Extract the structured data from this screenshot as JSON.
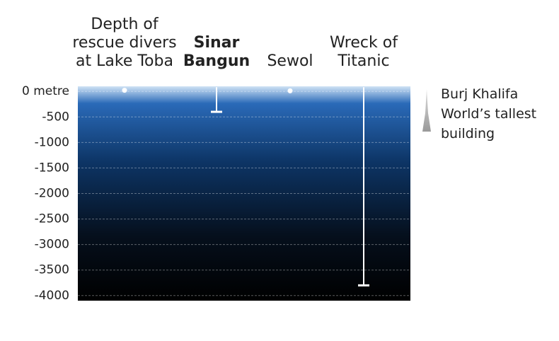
{
  "chart_data": {
    "type": "depth",
    "categories": [
      "Depth of rescue divers at Lake Toba",
      "Sinar Bangun",
      "Sewol",
      "Wreck of Titanic"
    ],
    "values": [
      -20,
      -400,
      -30,
      -3800
    ],
    "highlight_index": 1,
    "color": "#ffffff",
    "ylim": [
      -4100,
      100
    ],
    "yticks": [
      {
        "value": 0,
        "label": "0 metre"
      },
      -500,
      -1000,
      -1500,
      -2000,
      -2500,
      -3000,
      -3500,
      -4000
    ],
    "grid": true,
    "annotations": [
      "Burj Khalifa",
      "World’s tallest building"
    ]
  }
}
